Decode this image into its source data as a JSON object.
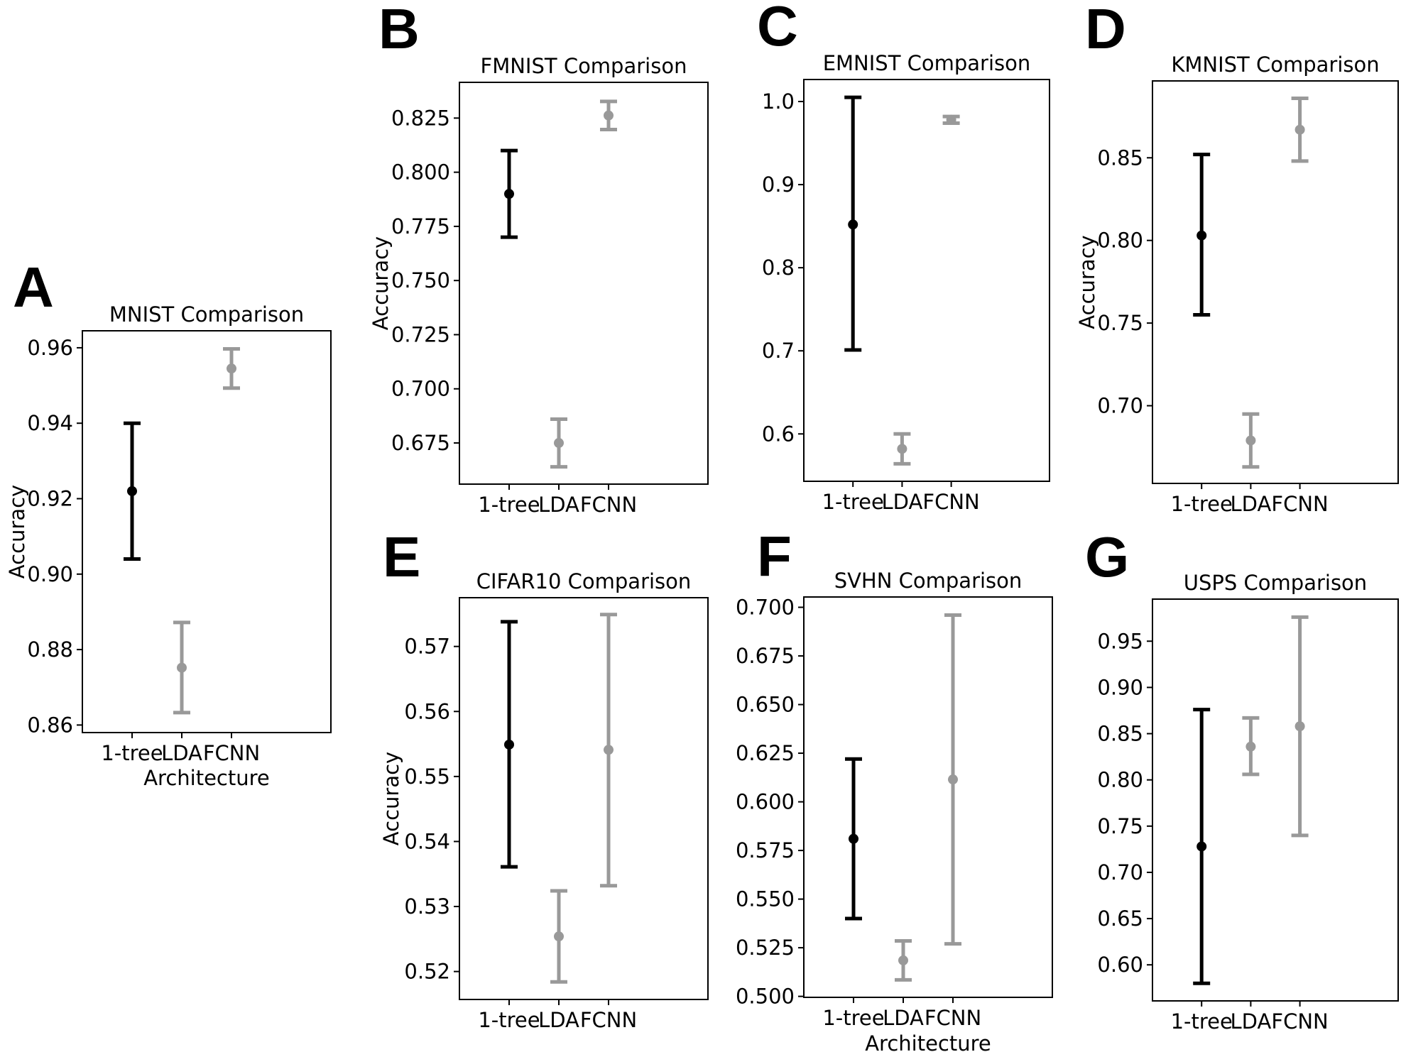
{
  "chart_data": [
    {
      "panel": "A",
      "type": "errorbar",
      "title": "MNIST Comparison",
      "xlabel": "Architecture",
      "ylabel": "Accuracy",
      "categories": [
        "1-tree",
        "LDA",
        "FCNN"
      ],
      "yticks": [
        0.86,
        0.88,
        0.9,
        0.92,
        0.94,
        0.96
      ],
      "ytick_labels": [
        "0.86",
        "0.88",
        "0.90",
        "0.92",
        "0.94",
        "0.96"
      ],
      "ylim": [
        0.858,
        0.9645
      ],
      "series": [
        {
          "name": "1-tree",
          "color": "#000000",
          "mean": 0.922,
          "low": 0.904,
          "high": 0.94
        },
        {
          "name": "LDA",
          "color": "#999999",
          "mean": 0.8752,
          "low": 0.8633,
          "high": 0.8872
        },
        {
          "name": "FCNN",
          "color": "#999999",
          "mean": 0.9545,
          "low": 0.9493,
          "high": 0.9597
        }
      ]
    },
    {
      "panel": "B",
      "type": "errorbar",
      "title": "FMNIST Comparison",
      "xlabel": "",
      "ylabel": "Accuracy",
      "categories": [
        "1-tree",
        "LDA",
        "FCNN"
      ],
      "yticks": [
        0.675,
        0.7,
        0.725,
        0.75,
        0.775,
        0.8,
        0.825
      ],
      "ytick_labels": [
        "0.675",
        "0.700",
        "0.725",
        "0.750",
        "0.775",
        "0.800",
        "0.825"
      ],
      "ylim": [
        0.656,
        0.8415
      ],
      "series": [
        {
          "name": "1-tree",
          "color": "#000000",
          "mean": 0.79,
          "low": 0.77,
          "high": 0.81
        },
        {
          "name": "LDA",
          "color": "#999999",
          "mean": 0.675,
          "low": 0.664,
          "high": 0.686
        },
        {
          "name": "FCNN",
          "color": "#999999",
          "mean": 0.8262,
          "low": 0.8197,
          "high": 0.8327
        }
      ]
    },
    {
      "panel": "C",
      "type": "errorbar",
      "title": "EMNIST Comparison",
      "xlabel": "",
      "ylabel": "",
      "categories": [
        "1-tree",
        "LDA",
        "FCNN"
      ],
      "yticks": [
        0.6,
        0.7,
        0.8,
        0.9,
        1.0
      ],
      "ytick_labels": [
        "0.6",
        "0.7",
        "0.8",
        "0.9",
        "1.0"
      ],
      "ylim": [
        0.543,
        1.0265
      ],
      "series": [
        {
          "name": "1-tree",
          "color": "#000000",
          "mean": 0.852,
          "low": 0.701,
          "high": 1.005
        },
        {
          "name": "LDA",
          "color": "#999999",
          "mean": 0.582,
          "low": 0.564,
          "high": 0.6
        },
        {
          "name": "FCNN",
          "color": "#999999",
          "mean": 0.978,
          "low": 0.974,
          "high": 0.982
        }
      ]
    },
    {
      "panel": "D",
      "type": "errorbar",
      "title": "KMNIST Comparison",
      "xlabel": "",
      "ylabel": "Accuracy",
      "categories": [
        "1-tree",
        "LDA",
        "FCNN"
      ],
      "yticks": [
        0.7,
        0.75,
        0.8,
        0.85
      ],
      "ytick_labels": [
        "0.70",
        "0.75",
        "0.80",
        "0.85"
      ],
      "ylim": [
        0.653,
        0.8965
      ],
      "series": [
        {
          "name": "1-tree",
          "color": "#000000",
          "mean": 0.803,
          "low": 0.755,
          "high": 0.852
        },
        {
          "name": "LDA",
          "color": "#999999",
          "mean": 0.679,
          "low": 0.663,
          "high": 0.695
        },
        {
          "name": "FCNN",
          "color": "#999999",
          "mean": 0.867,
          "low": 0.848,
          "high": 0.886
        }
      ]
    },
    {
      "panel": "E",
      "type": "errorbar",
      "title": "CIFAR10 Comparison",
      "xlabel": "",
      "ylabel": "Accuracy",
      "categories": [
        "1-tree",
        "LDA",
        "FCNN"
      ],
      "yticks": [
        0.52,
        0.53,
        0.54,
        0.55,
        0.56,
        0.57
      ],
      "ytick_labels": [
        "0.52",
        "0.53",
        "0.54",
        "0.55",
        "0.56",
        "0.57"
      ],
      "ylim": [
        0.5157,
        0.5775
      ],
      "series": [
        {
          "name": "1-tree",
          "color": "#000000",
          "mean": 0.5549,
          "low": 0.5361,
          "high": 0.5738
        },
        {
          "name": "LDA",
          "color": "#999999",
          "mean": 0.5254,
          "low": 0.5184,
          "high": 0.5324
        },
        {
          "name": "FCNN",
          "color": "#999999",
          "mean": 0.5541,
          "low": 0.5332,
          "high": 0.5749
        }
      ]
    },
    {
      "panel": "F",
      "type": "errorbar",
      "title": "SVHN Comparison",
      "xlabel": "Architecture",
      "ylabel": "",
      "categories": [
        "1-tree",
        "LDA",
        "FCNN"
      ],
      "yticks": [
        0.5,
        0.525,
        0.55,
        0.575,
        0.6,
        0.625,
        0.65,
        0.675,
        0.7
      ],
      "ytick_labels": [
        "0.500",
        "0.525",
        "0.550",
        "0.575",
        "0.600",
        "0.625",
        "0.650",
        "0.675",
        "0.700"
      ],
      "ylim": [
        0.4995,
        0.7053
      ],
      "series": [
        {
          "name": "1-tree",
          "color": "#000000",
          "mean": 0.581,
          "low": 0.54,
          "high": 0.622
        },
        {
          "name": "LDA",
          "color": "#999999",
          "mean": 0.5185,
          "low": 0.5085,
          "high": 0.5285
        },
        {
          "name": "FCNN",
          "color": "#999999",
          "mean": 0.6115,
          "low": 0.527,
          "high": 0.696
        }
      ]
    },
    {
      "panel": "G",
      "type": "errorbar",
      "title": "USPS Comparison",
      "xlabel": "",
      "ylabel": "",
      "categories": [
        "1-tree",
        "LDA",
        "FCNN"
      ],
      "yticks": [
        0.6,
        0.65,
        0.7,
        0.75,
        0.8,
        0.85,
        0.9,
        0.95
      ],
      "ytick_labels": [
        "0.60",
        "0.65",
        "0.70",
        "0.75",
        "0.80",
        "0.85",
        "0.90",
        "0.95"
      ],
      "ylim": [
        0.561,
        0.9955
      ],
      "series": [
        {
          "name": "1-tree",
          "color": "#000000",
          "mean": 0.728,
          "low": 0.58,
          "high": 0.876
        },
        {
          "name": "LDA",
          "color": "#999999",
          "mean": 0.836,
          "low": 0.806,
          "high": 0.867
        },
        {
          "name": "FCNN",
          "color": "#999999",
          "mean": 0.858,
          "low": 0.74,
          "high": 0.976
        }
      ]
    }
  ]
}
